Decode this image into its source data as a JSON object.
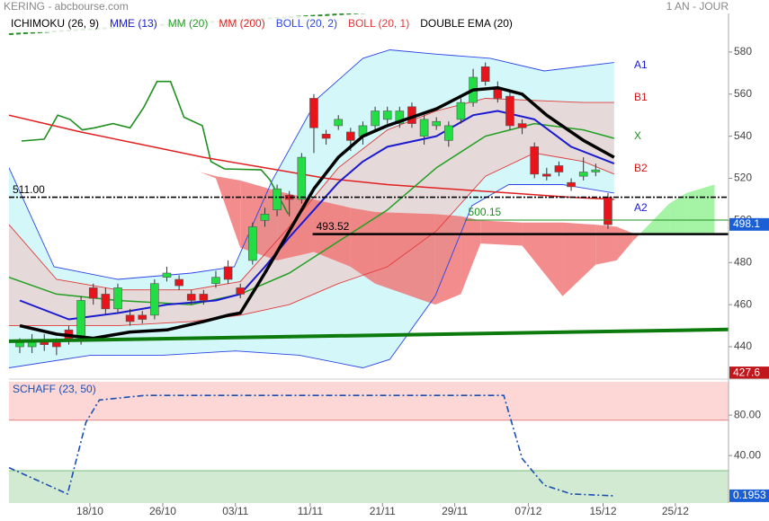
{
  "chart_data": [
    {
      "type": "candlestick",
      "title": "KERING - abcbourse.com",
      "subtitle": "1 AN - JOUR",
      "x": [
        0,
        1,
        2,
        3,
        4,
        5,
        6,
        7,
        8,
        9,
        10,
        11,
        12,
        13,
        14,
        15,
        16,
        17,
        18,
        19,
        20,
        21,
        22,
        23,
        24,
        25,
        26,
        27,
        28,
        29,
        30,
        31,
        32,
        33,
        34,
        35,
        36,
        37,
        38,
        39,
        40,
        41,
        42,
        43,
        44,
        45,
        46,
        47,
        48
      ],
      "open": [
        440,
        440,
        443,
        442,
        448,
        445,
        468,
        465,
        458,
        455,
        455,
        455,
        473,
        472,
        465,
        465,
        470,
        478,
        468,
        481,
        500,
        505,
        512,
        510,
        558,
        541,
        545,
        542,
        540,
        545,
        548,
        546,
        554,
        540,
        545,
        538,
        548,
        556,
        573,
        563,
        559,
        546,
        535,
        522,
        526,
        518,
        521,
        523,
        511
      ],
      "high": [
        444,
        446,
        446,
        444,
        450,
        464,
        470,
        468,
        470,
        458,
        457,
        472,
        478,
        474,
        467,
        467,
        476,
        481,
        470,
        499,
        506,
        517,
        514,
        532,
        560,
        543,
        550,
        544,
        547,
        554,
        554,
        554,
        556,
        550,
        549,
        547,
        558,
        572,
        575,
        566,
        561,
        548,
        537,
        525,
        528,
        520,
        530,
        527,
        513
      ],
      "low": [
        437,
        437,
        438,
        436,
        441,
        441,
        460,
        455,
        456,
        450,
        451,
        453,
        471,
        467,
        460,
        460,
        468,
        470,
        463,
        479,
        497,
        502,
        502,
        508,
        532,
        536,
        543,
        533,
        536,
        543,
        546,
        544,
        544,
        536,
        543,
        535,
        546,
        554,
        564,
        556,
        543,
        541,
        520,
        519,
        521,
        514,
        519,
        521,
        496
      ],
      "close": [
        442,
        443,
        441,
        440,
        443,
        462,
        463,
        458,
        468,
        452,
        453,
        470,
        475,
        469,
        462,
        462,
        473,
        472,
        465,
        497,
        503,
        515,
        510,
        530,
        544,
        539,
        548,
        538,
        545,
        552,
        552,
        552,
        546,
        548,
        547,
        545,
        556,
        568,
        566,
        558,
        545,
        544,
        522,
        521,
        523,
        516,
        523,
        524,
        498
      ],
      "up_color": "#22dd44",
      "down_color": "#e8141c",
      "xlim": [
        -0.88,
        57.84
      ],
      "ylim": [
        425.5,
        598.3
      ],
      "yticks": [
        440,
        460,
        480,
        500,
        520,
        540,
        560,
        580
      ],
      "xticks": [
        {
          "value": 5.72,
          "label": "18/10"
        },
        {
          "value": 11.67,
          "label": "26/10"
        },
        {
          "value": 17.6,
          "label": "03/11"
        },
        {
          "value": 23.7,
          "label": "11/11"
        },
        {
          "value": 29.6,
          "label": "21/11"
        },
        {
          "value": 35.5,
          "label": "29/11"
        },
        {
          "value": 41.5,
          "label": "07/12"
        },
        {
          "value": 47.6,
          "label": "15/12"
        },
        {
          "value": 53.5,
          "label": "25/12"
        }
      ],
      "last_price": {
        "value": 498.1,
        "color": "#1a5fd6"
      },
      "low_price": {
        "value": 427.6,
        "color": "#c0161c"
      },
      "ichimoku": {
        "name": "ICHIMOKU (26, 9)",
        "color": "#000000",
        "up_color": "#8ef08e",
        "down_color": "#f07070",
        "x": [
          14.7,
          16,
          18,
          21,
          24,
          27,
          29,
          33.9,
          36,
          37.6,
          41,
          44.3,
          47,
          48.7,
          50,
          53,
          54.4,
          56.7
        ],
        "span_a": [
          523,
          520,
          487,
          481,
          485,
          478,
          470,
          460,
          465,
          489,
          488,
          464,
          479,
          481,
          490,
          508,
          513,
          517
        ],
        "span_b": [
          523,
          521,
          519,
          514,
          510,
          506,
          504,
          503,
          502,
          500,
          499,
          499,
          498,
          497,
          494,
          494,
          494,
          494
        ],
        "chikou": {
          "color": "#1f8f1f",
          "x": [
            0.15,
            2.0,
            3.1,
            4.1,
            5.1,
            6.1,
            7.6,
            9.0,
            10.1,
            11.2,
            12.3,
            13.4,
            14.9,
            15.6,
            16.7,
            19.7,
            20.4,
            21.9
          ],
          "values": [
            537.7,
            538.6,
            550,
            548,
            543,
            544,
            546,
            544,
            553.5,
            566,
            566,
            549,
            545,
            528,
            524.5,
            524,
            519.4,
            503
          ]
        }
      },
      "bands": [
        {
          "name": "BOLL (20, 2)",
          "color": "#2a44e8",
          "fill": "#d4f7f9",
          "upper": {
            "x": [
              -0.88,
              2.8,
              8,
              14,
              17.5,
              20.6,
              24.3,
              28,
              30.2,
              33.9,
              38.4,
              42.8,
              48.5
            ],
            "values": [
              525,
              478,
              472,
              475,
              478,
              519,
              558,
              577,
              581,
              579,
              577,
              571,
              575
            ]
          },
          "lower": {
            "x": [
              -0.88,
              5.8,
              11.7,
              17.6,
              22.8,
              28,
              30.2,
              33.9,
              36.9,
              39.9,
              44.3,
              48.5
            ],
            "values": [
              430,
              436,
              436,
              438,
              436,
              430,
              434,
              464,
              507,
              517,
              517,
              513
            ]
          }
        },
        {
          "name": "BOLL (20, 1)",
          "color": "#e03a3a",
          "fill": "#e6d9d9",
          "upper": {
            "x": [
              -0.88,
              3,
              8,
              14,
              18,
              22,
              26,
              30,
              34,
              38,
              42,
              46,
              48.5
            ],
            "values": [
              498,
              472,
              467,
              467,
              471,
              497,
              525,
              543,
              552,
              558,
              557,
              556,
              556
            ]
          },
          "lower": {
            "x": [
              -0.88,
              3,
              8,
              14,
              18,
              22,
              26,
              30,
              34,
              38,
              42,
              46,
              48.5
            ],
            "values": [
              450,
              450,
              450,
              452,
              455,
              460,
              470,
              478,
              495,
              521,
              532,
              528,
              522
            ]
          }
        }
      ],
      "series": [
        {
          "name": "MME (13)",
          "color": "#1a1ad0",
          "width": 2,
          "x": [
            0,
            4,
            8,
            12,
            16,
            18,
            20,
            22,
            24,
            26,
            28,
            30,
            34,
            37,
            39,
            42,
            45,
            48.5
          ],
          "values": [
            462,
            453,
            456,
            460,
            462,
            465,
            478,
            492,
            505,
            518,
            528,
            535,
            540,
            550,
            552,
            548,
            535,
            527
          ]
        },
        {
          "name": "MM (20)",
          "color": "#22a022",
          "width": 1.5,
          "x": [
            -0.88,
            3,
            8,
            14,
            18,
            22,
            26,
            30,
            34,
            38,
            42,
            46,
            48.5
          ],
          "values": [
            473,
            465,
            462,
            460,
            465,
            475,
            490,
            505,
            525,
            540,
            546,
            543,
            539
          ]
        },
        {
          "name": "MM (200)",
          "color": "#e02020",
          "width": 1.5,
          "x": [
            -0.88,
            5,
            10,
            15,
            20,
            25,
            30,
            35,
            40,
            45,
            48.5
          ],
          "values": [
            550,
            542,
            536,
            530,
            525,
            520,
            517,
            515,
            513,
            511,
            510
          ]
        },
        {
          "name": "DOUBLE EMA (20)",
          "color": "#000000",
          "width": 3.5,
          "x": [
            0,
            3,
            6,
            9,
            12,
            15,
            17,
            18,
            20,
            22,
            24,
            26,
            28,
            30,
            34,
            37,
            39,
            41,
            43,
            46,
            48.5
          ],
          "values": [
            450,
            446,
            444,
            447,
            448,
            452,
            455,
            456,
            475,
            495,
            515,
            530,
            540,
            545,
            553,
            562,
            563,
            560,
            550,
            538,
            530
          ]
        }
      ],
      "levels": [
        {
          "value": {
            "value": 511,
            "label": "511.00"
          },
          "from": -0.88,
          "color": "#000000",
          "style": "dashdot"
        },
        {
          "value": 493.52,
          "from": 23.9,
          "color": "#000000",
          "style": "thick"
        },
        {
          "value": 500.15,
          "from": 36.3,
          "color": "#1f8f1f",
          "style": "thin"
        }
      ],
      "trendlines": [
        {
          "color": "#0d7a0d",
          "style": "thick",
          "x": [
            -0.88,
            57.84
          ],
          "values": [
            442.6,
            448.2
          ]
        },
        {
          "color": "#2a8a2a",
          "style": "dashed",
          "x": [
            -0.88,
            29.1
          ],
          "values": [
            588.5,
            599
          ]
        }
      ],
      "annotations": [
        {
          "text": "A1",
          "color": "#1a1ad0"
        },
        {
          "text": "B1",
          "color": "#d01818"
        },
        {
          "text": "X",
          "color": "#1f8f1f"
        },
        {
          "text": "B2",
          "color": "#d01818"
        },
        {
          "text": "A2",
          "color": "#1a1ad0"
        }
      ]
    },
    {
      "type": "line",
      "title": "SCHAFF (23, 50)",
      "color": "#1a4fb0",
      "x": [
        -0.88,
        3.9,
        5.4,
        6.5,
        10.2,
        39.5,
        41,
        42.8,
        45,
        48.4
      ],
      "values": [
        28,
        2,
        73,
        95,
        99.5,
        99.5,
        37,
        10.7,
        2,
        0.1953
      ],
      "last_value": 0.1953,
      "last_color": "#1a5fd6",
      "ylim": [
        -7,
        113
      ],
      "yticks": [
        {
          "value": 40,
          "label": "40.00"
        },
        {
          "value": 80,
          "label": "80.00"
        }
      ],
      "bands": {
        "upper": 75,
        "lower": 25,
        "upper_fill": "#fdd6d6",
        "upper_line": "#e88080",
        "lower_fill": "#d2ead2",
        "lower_line": "#7cbf7c"
      }
    }
  ]
}
